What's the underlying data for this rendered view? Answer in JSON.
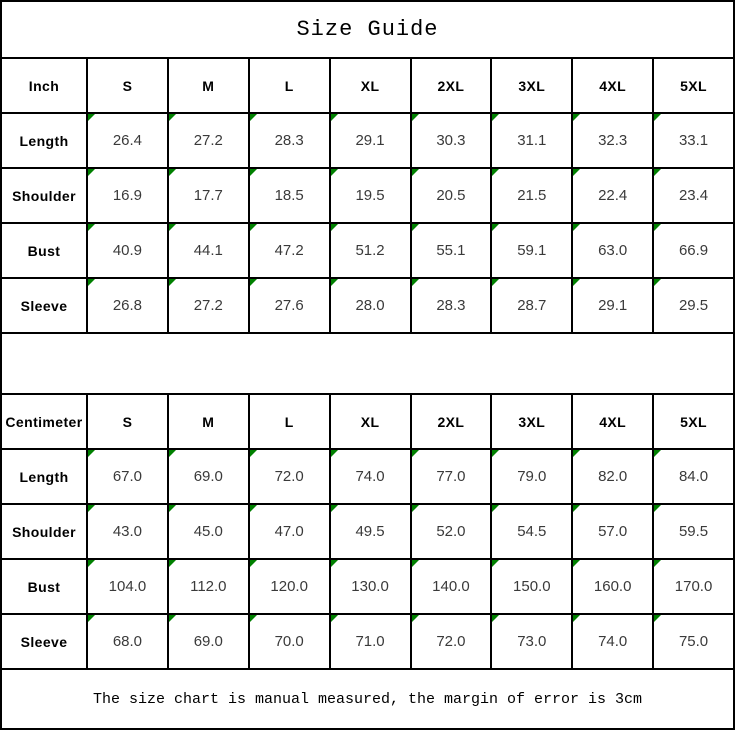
{
  "title": "Size Guide",
  "footer_note": "The size chart is manual measured, the margin of error is 3cm",
  "colors": {
    "border": "#000000",
    "background": "#ffffff",
    "header_text": "#000000",
    "value_text": "#3a3a3a",
    "comment_marker": "#008000"
  },
  "icons": {
    "cell_comment_marker": "green top-left corner triangle"
  },
  "chart_data": [
    {
      "type": "table",
      "title": "Size Guide",
      "unit_label": "Inch",
      "columns": [
        "S",
        "M",
        "L",
        "XL",
        "2XL",
        "3XL",
        "4XL",
        "5XL"
      ],
      "rows": [
        {
          "label": "Length",
          "values": [
            "26.4",
            "27.2",
            "28.3",
            "29.1",
            "30.3",
            "31.1",
            "32.3",
            "33.1"
          ]
        },
        {
          "label": "Shoulder",
          "values": [
            "16.9",
            "17.7",
            "18.5",
            "19.5",
            "20.5",
            "21.5",
            "22.4",
            "23.4"
          ]
        },
        {
          "label": "Bust",
          "values": [
            "40.9",
            "44.1",
            "47.2",
            "51.2",
            "55.1",
            "59.1",
            "63.0",
            "66.9"
          ]
        },
        {
          "label": "Sleeve",
          "values": [
            "26.8",
            "27.2",
            "27.6",
            "28.0",
            "28.3",
            "28.7",
            "29.1",
            "29.5"
          ]
        }
      ]
    },
    {
      "type": "table",
      "title": "Size Guide",
      "unit_label": "Centimeter",
      "columns": [
        "S",
        "M",
        "L",
        "XL",
        "2XL",
        "3XL",
        "4XL",
        "5XL"
      ],
      "rows": [
        {
          "label": "Length",
          "values": [
            "67.0",
            "69.0",
            "72.0",
            "74.0",
            "77.0",
            "79.0",
            "82.0",
            "84.0"
          ]
        },
        {
          "label": "Shoulder",
          "values": [
            "43.0",
            "45.0",
            "47.0",
            "49.5",
            "52.0",
            "54.5",
            "57.0",
            "59.5"
          ]
        },
        {
          "label": "Bust",
          "values": [
            "104.0",
            "112.0",
            "120.0",
            "130.0",
            "140.0",
            "150.0",
            "160.0",
            "170.0"
          ]
        },
        {
          "label": "Sleeve",
          "values": [
            "68.0",
            "69.0",
            "70.0",
            "71.0",
            "72.0",
            "73.0",
            "74.0",
            "75.0"
          ]
        }
      ]
    }
  ]
}
